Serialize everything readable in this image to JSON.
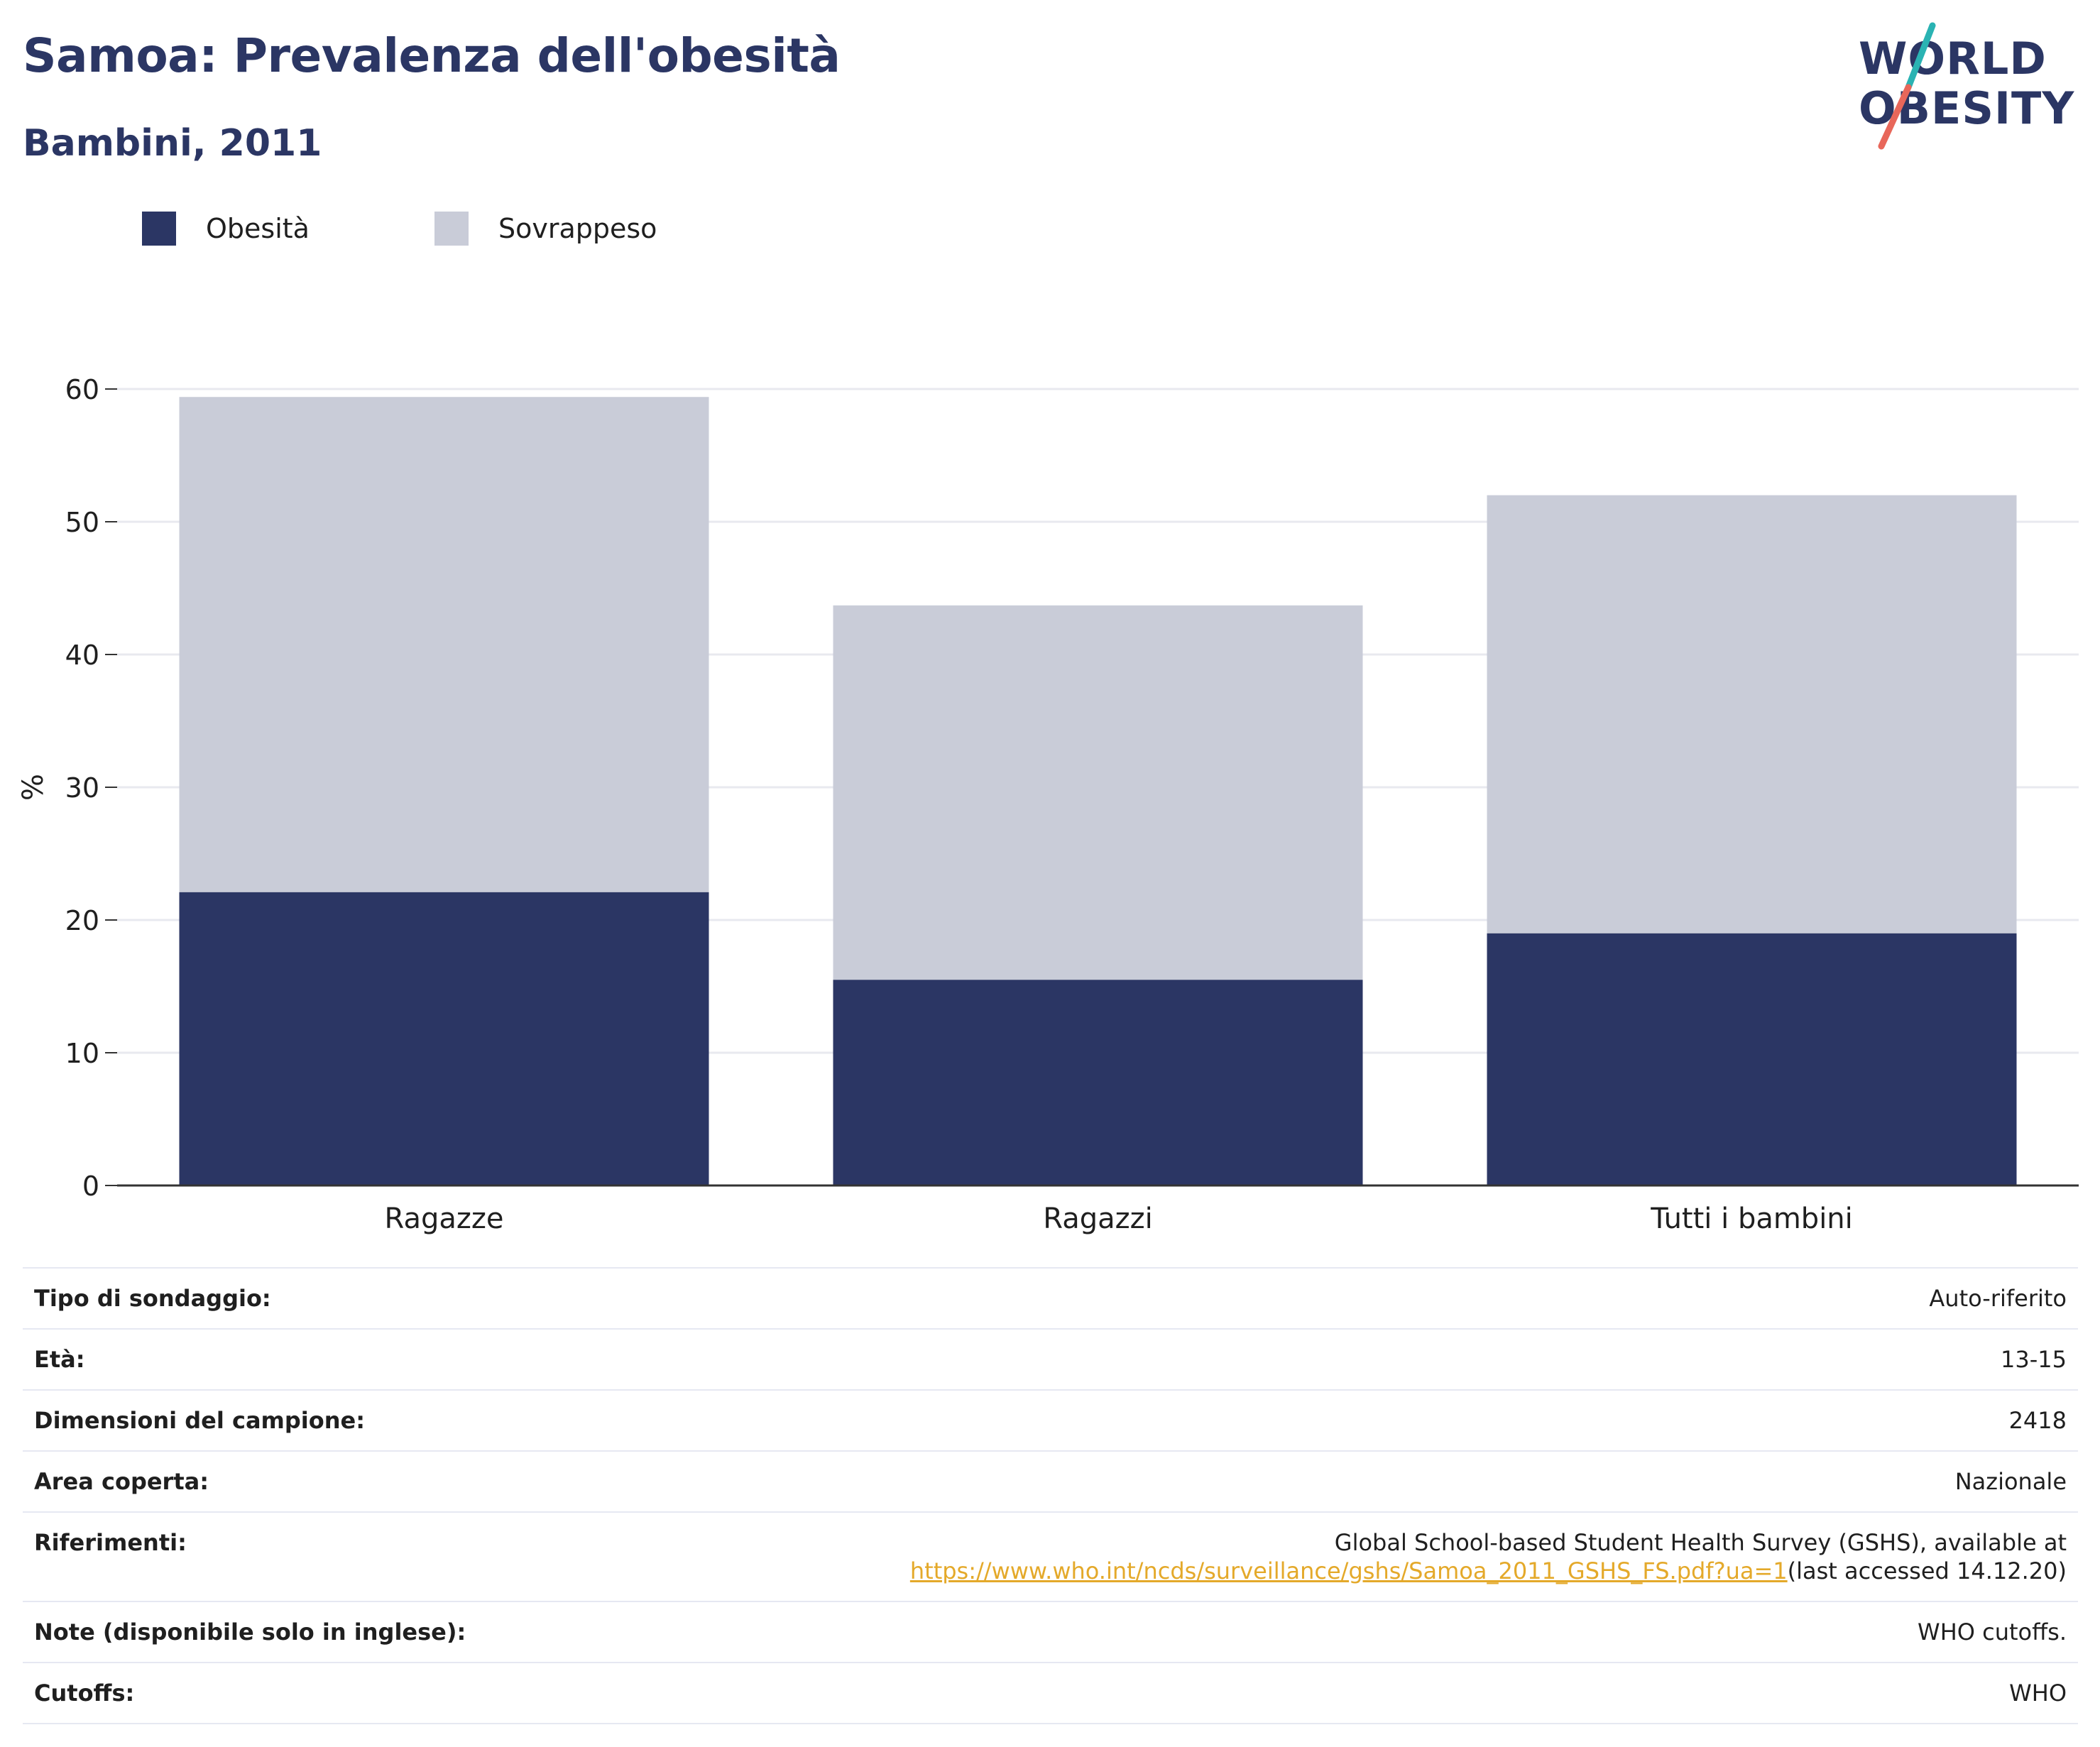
{
  "header": {
    "title": "Samoa: Prevalenza dell'obesità",
    "subtitle": "Bambini, 2011"
  },
  "logo": {
    "line1": "WORLD",
    "line2": "OBESITY",
    "colors": {
      "text": "#2b3664",
      "slash_top": "#2ab3b3",
      "slash_bottom": "#e8675a"
    }
  },
  "legend": [
    {
      "label": "Obesità",
      "color": "#2b3664"
    },
    {
      "label": "Sovrappeso",
      "color": "#c9ccd8"
    }
  ],
  "chart_data": {
    "type": "bar",
    "stacked": true,
    "categories": [
      "Ragazze",
      "Ragazzi",
      "Tutti i bambini"
    ],
    "series": [
      {
        "name": "Obesità",
        "values": [
          22.1,
          15.5,
          19.0
        ],
        "color": "#2b3664"
      },
      {
        "name": "Sovrappeso",
        "values": [
          37.3,
          28.2,
          33.0
        ],
        "color": "#c9ccd8"
      }
    ],
    "ylabel": "%",
    "ylim": [
      0,
      60
    ],
    "yticks": [
      0,
      10,
      20,
      30,
      40,
      50,
      60
    ],
    "grid": true,
    "legend_position": "top-left"
  },
  "details": [
    {
      "key": "Tipo di sondaggio:",
      "value": "Auto-riferito"
    },
    {
      "key": "Età:",
      "value": "13-15"
    },
    {
      "key": "Dimensioni del campione:",
      "value": "2418"
    },
    {
      "key": "Area coperta:",
      "value": "Nazionale"
    },
    {
      "key": "Riferimenti:",
      "value_line1": "Global School-based Student Health Survey (GSHS), available at",
      "link": "https://www.who.int/ncds/surveillance/gshs/Samoa_2011_GSHS_FS.pdf?ua=1",
      "value_suffix": "(last accessed 14.12.20)"
    },
    {
      "key": "Note (disponibile solo in inglese):",
      "value": "WHO cutoffs."
    },
    {
      "key": "Cutoffs:",
      "value": "WHO"
    }
  ]
}
